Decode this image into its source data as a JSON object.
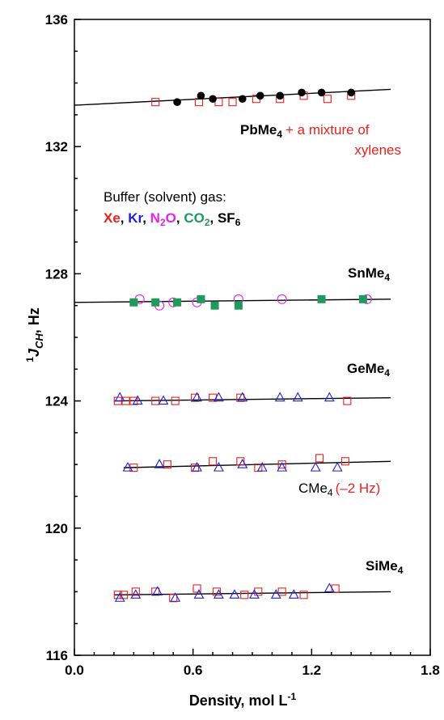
{
  "colors": {
    "Xe": "#e8211e",
    "Kr": "#1f1fd6",
    "N2O": "#e623e6",
    "CO2": "#1f9a5c",
    "SF6": "#000000",
    "red_text": "#e8211e"
  },
  "chart_data": {
    "type": "scatter",
    "xlabel": "Density, mol L",
    "xlabel_sup": "-1",
    "ylabel_sup": "1",
    "ylabel_main": "J",
    "ylabel_sub": "CH",
    "ylabel_tail": ", Hz",
    "xlim": [
      0.0,
      1.8
    ],
    "ylim": [
      116,
      136
    ],
    "xticks": [
      0.0,
      0.6,
      1.2,
      1.8
    ],
    "xtick_labels": [
      "0.0",
      "0.6",
      "1.2",
      "1.8"
    ],
    "yticks": [
      116,
      120,
      124,
      128,
      132,
      136
    ],
    "ytick_labels": [
      "116",
      "120",
      "124",
      "128",
      "132",
      "136"
    ],
    "grid": false,
    "legend": {
      "title": "Buffer (solvent) gas:",
      "items": [
        {
          "name": "Xe",
          "color_key": "Xe"
        },
        {
          "name": "Kr",
          "color_key": "Kr"
        },
        {
          "name": "N",
          "sub": "2",
          "tail": "O",
          "color_key": "N2O"
        },
        {
          "name": "CO",
          "sub": "2",
          "color_key": "CO2"
        },
        {
          "name": "SF",
          "sub": "6",
          "color_key": "SF6"
        }
      ]
    },
    "groups": [
      {
        "label": "PbMe",
        "label_sub": "4",
        "note": "+ a mixture of",
        "note2": "xylenes",
        "fit": {
          "x": [
            0.0,
            1.6
          ],
          "y": [
            133.3,
            133.8
          ]
        },
        "series": [
          {
            "gas": "Xe",
            "marker": "square-open",
            "points": [
              [
                0.41,
                133.4
              ],
              [
                0.63,
                133.4
              ],
              [
                0.73,
                133.4
              ],
              [
                0.8,
                133.4
              ],
              [
                0.92,
                133.5
              ],
              [
                1.04,
                133.5
              ],
              [
                1.16,
                133.6
              ],
              [
                1.28,
                133.5
              ],
              [
                1.4,
                133.6
              ]
            ]
          },
          {
            "gas": "SF6",
            "marker": "circle-filled",
            "points": [
              [
                0.52,
                133.4
              ],
              [
                0.64,
                133.6
              ],
              [
                0.7,
                133.5
              ],
              [
                0.85,
                133.5
              ],
              [
                0.94,
                133.6
              ],
              [
                1.04,
                133.6
              ],
              [
                1.15,
                133.7
              ],
              [
                1.25,
                133.7
              ],
              [
                1.4,
                133.7
              ]
            ]
          }
        ]
      },
      {
        "label": "SnMe",
        "label_sub": "4",
        "fit": {
          "x": [
            0.0,
            1.6
          ],
          "y": [
            127.1,
            127.2
          ]
        },
        "series": [
          {
            "gas": "N2O",
            "marker": "circle-open",
            "points": [
              [
                0.33,
                127.2
              ],
              [
                0.43,
                127.0
              ],
              [
                0.5,
                127.1
              ],
              [
                0.62,
                127.1
              ],
              [
                0.83,
                127.2
              ],
              [
                1.05,
                127.2
              ],
              [
                1.48,
                127.2
              ]
            ]
          },
          {
            "gas": "CO2",
            "marker": "square-filled",
            "points": [
              [
                0.3,
                127.1
              ],
              [
                0.41,
                127.1
              ],
              [
                0.52,
                127.1
              ],
              [
                0.64,
                127.2
              ],
              [
                0.71,
                127.0
              ],
              [
                0.83,
                127.0
              ],
              [
                1.25,
                127.2
              ],
              [
                1.46,
                127.2
              ]
            ]
          }
        ]
      },
      {
        "label": "GeMe",
        "label_sub": "4",
        "fit": {
          "x": [
            0.2,
            1.6
          ],
          "y": [
            124.0,
            124.1
          ]
        },
        "series": [
          {
            "gas": "Xe",
            "marker": "square-open",
            "points": [
              [
                0.22,
                124.0
              ],
              [
                0.26,
                124.0
              ],
              [
                0.3,
                124.0
              ],
              [
                0.41,
                124.0
              ],
              [
                0.51,
                124.0
              ],
              [
                0.61,
                124.1
              ],
              [
                0.7,
                124.1
              ],
              [
                0.84,
                124.1
              ],
              [
                1.38,
                124.0
              ]
            ]
          },
          {
            "gas": "Kr",
            "marker": "triangle-open",
            "points": [
              [
                0.23,
                124.1
              ],
              [
                0.32,
                124.0
              ],
              [
                0.45,
                124.0
              ],
              [
                0.62,
                124.1
              ],
              [
                0.73,
                124.1
              ],
              [
                0.85,
                124.1
              ],
              [
                1.04,
                124.1
              ],
              [
                1.13,
                124.1
              ],
              [
                1.29,
                124.1
              ]
            ]
          }
        ]
      },
      {
        "label": "CMe",
        "label_sub": "4",
        "note": "(–2 Hz)",
        "fit": {
          "x": [
            0.25,
            1.6
          ],
          "y": [
            121.9,
            122.1
          ]
        },
        "series": [
          {
            "gas": "Xe",
            "marker": "square-open",
            "points": [
              [
                0.3,
                121.9
              ],
              [
                0.47,
                122.0
              ],
              [
                0.61,
                121.9
              ],
              [
                0.7,
                122.1
              ],
              [
                0.84,
                122.1
              ],
              [
                0.93,
                121.9
              ],
              [
                1.05,
                122.0
              ],
              [
                1.24,
                122.2
              ],
              [
                1.37,
                122.1
              ]
            ]
          },
          {
            "gas": "Kr",
            "marker": "triangle-open",
            "points": [
              [
                0.27,
                121.9
              ],
              [
                0.43,
                122.0
              ],
              [
                0.62,
                121.9
              ],
              [
                0.73,
                121.9
              ],
              [
                0.85,
                122.0
              ],
              [
                0.95,
                121.9
              ],
              [
                1.05,
                121.9
              ],
              [
                1.22,
                121.9
              ],
              [
                1.33,
                121.9
              ]
            ]
          }
        ]
      },
      {
        "label": "SiMe",
        "label_sub": "4",
        "fit": {
          "x": [
            0.2,
            1.6
          ],
          "y": [
            117.9,
            118.0
          ]
        },
        "series": [
          {
            "gas": "Xe",
            "marker": "square-open",
            "points": [
              [
                0.22,
                117.9
              ],
              [
                0.25,
                117.9
              ],
              [
                0.31,
                118.0
              ],
              [
                0.41,
                118.0
              ],
              [
                0.5,
                117.8
              ],
              [
                0.62,
                118.1
              ],
              [
                0.72,
                118.0
              ],
              [
                0.86,
                117.9
              ],
              [
                0.93,
                118.0
              ],
              [
                1.05,
                118.0
              ],
              [
                1.16,
                117.9
              ],
              [
                1.32,
                118.1
              ]
            ]
          },
          {
            "gas": "Kr",
            "marker": "triangle-open",
            "points": [
              [
                0.23,
                117.8
              ],
              [
                0.31,
                117.9
              ],
              [
                0.42,
                118.0
              ],
              [
                0.51,
                117.8
              ],
              [
                0.63,
                117.9
              ],
              [
                0.73,
                117.9
              ],
              [
                0.81,
                117.9
              ],
              [
                0.91,
                117.9
              ],
              [
                1.02,
                117.9
              ],
              [
                1.11,
                117.9
              ],
              [
                1.29,
                118.1
              ]
            ]
          }
        ]
      }
    ]
  }
}
